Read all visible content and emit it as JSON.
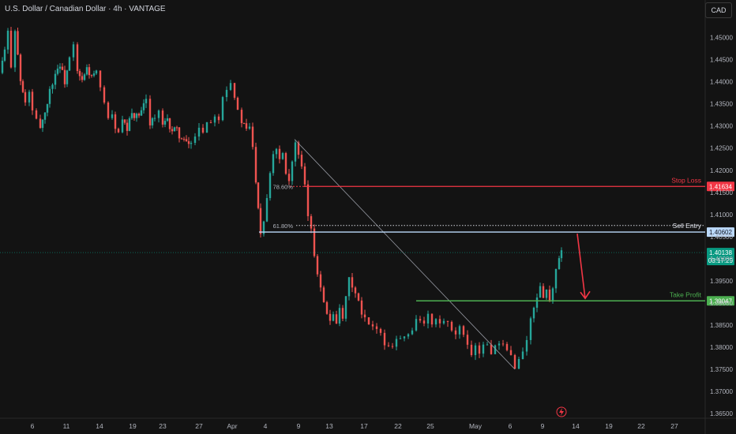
{
  "header": {
    "title": "U.S. Dollar / Canadian Dollar · 4h · VANTAGE",
    "currency": "CAD"
  },
  "colors": {
    "up": "#26a69a",
    "down": "#ef5350",
    "stop": "#f23645",
    "entry": "#bbd9fb",
    "target": "#4caf50",
    "current": "#089981",
    "background": "#131313"
  },
  "chart_data": {
    "type": "candlestick",
    "symbol": "USDCAD",
    "timeframe": "4h",
    "ylim": [
      1.365,
      1.4535
    ],
    "y_ticks": [
      "1.45000",
      "1.44500",
      "1.44000",
      "1.43500",
      "1.43000",
      "1.42500",
      "1.42000",
      "1.41500",
      "1.41000",
      "1.40500",
      "1.40000",
      "1.39500",
      "1.39000",
      "1.38500",
      "1.38000",
      "1.37500",
      "1.37000",
      "1.36500"
    ],
    "x_ticks": [
      "6",
      "11",
      "14",
      "19",
      "23",
      "27",
      "Apr",
      "4",
      "9",
      "13",
      "17",
      "22",
      "25",
      "May",
      "6",
      "9",
      "14",
      "19",
      "22",
      "27"
    ],
    "price_path": [
      [
        0,
        1.442
      ],
      [
        6,
        1.447
      ],
      [
        10,
        1.451
      ],
      [
        14,
        1.444
      ],
      [
        19,
        1.452
      ],
      [
        26,
        1.44
      ],
      [
        32,
        1.435
      ],
      [
        37,
        1.438
      ],
      [
        41,
        1.433
      ],
      [
        46,
        1.431
      ],
      [
        51,
        1.43
      ],
      [
        57,
        1.433
      ],
      [
        63,
        1.438
      ],
      [
        70,
        1.442
      ],
      [
        76,
        1.444
      ],
      [
        82,
        1.44
      ],
      [
        88,
        1.445
      ],
      [
        93,
        1.448
      ],
      [
        98,
        1.442
      ],
      [
        104,
        1.44
      ],
      [
        110,
        1.443
      ],
      [
        116,
        1.441
      ],
      [
        122,
        1.442
      ],
      [
        127,
        1.438
      ],
      [
        132,
        1.436
      ],
      [
        137,
        1.432
      ],
      [
        142,
        1.432
      ],
      [
        146,
        1.43
      ],
      [
        150,
        1.428
      ],
      [
        155,
        1.431
      ],
      [
        161,
        1.429
      ],
      [
        167,
        1.433
      ],
      [
        173,
        1.432
      ],
      [
        179,
        1.433
      ],
      [
        185,
        1.436
      ],
      [
        190,
        1.431
      ],
      [
        196,
        1.432
      ],
      [
        201,
        1.433
      ],
      [
        206,
        1.43
      ],
      [
        212,
        1.431
      ],
      [
        218,
        1.429
      ],
      [
        224,
        1.429
      ],
      [
        230,
        1.427
      ],
      [
        236,
        1.426
      ],
      [
        242,
        1.426
      ],
      [
        247,
        1.428
      ],
      [
        252,
        1.43
      ],
      [
        257,
        1.429
      ],
      [
        262,
        1.431
      ],
      [
        267,
        1.431
      ],
      [
        272,
        1.433
      ],
      [
        277,
        1.432
      ],
      [
        282,
        1.437
      ],
      [
        287,
        1.439
      ],
      [
        292,
        1.44
      ],
      [
        297,
        1.437
      ],
      [
        301,
        1.433
      ],
      [
        306,
        1.431
      ],
      [
        312,
        1.429
      ],
      [
        316,
        1.43
      ],
      [
        320,
        1.425
      ],
      [
        324,
        1.418
      ],
      [
        327,
        1.412
      ],
      [
        330,
        1.406
      ],
      [
        334,
        1.409
      ],
      [
        338,
        1.414
      ],
      [
        342,
        1.42
      ],
      [
        346,
        1.424
      ],
      [
        350,
        1.425
      ],
      [
        354,
        1.423
      ],
      [
        358,
        1.424
      ],
      [
        362,
        1.42
      ],
      [
        366,
        1.418
      ],
      [
        370,
        1.422
      ],
      [
        374,
        1.426
      ],
      [
        378,
        1.423
      ],
      [
        382,
        1.42
      ],
      [
        386,
        1.416
      ],
      [
        390,
        1.41
      ],
      [
        394,
        1.406
      ],
      [
        398,
        1.401
      ],
      [
        402,
        1.397
      ],
      [
        406,
        1.394
      ],
      [
        410,
        1.391
      ],
      [
        414,
        1.387
      ],
      [
        418,
        1.386
      ],
      [
        422,
        1.388
      ],
      [
        426,
        1.386
      ],
      [
        430,
        1.388
      ],
      [
        434,
        1.386
      ],
      [
        438,
        1.391
      ],
      [
        442,
        1.395
      ],
      [
        446,
        1.394
      ],
      [
        450,
        1.392
      ],
      [
        454,
        1.39
      ],
      [
        458,
        1.387
      ],
      [
        462,
        1.386
      ],
      [
        467,
        1.385
      ],
      [
        472,
        1.384
      ],
      [
        477,
        1.385
      ],
      [
        482,
        1.383
      ],
      [
        487,
        1.381
      ],
      [
        492,
        1.38
      ],
      [
        497,
        1.381
      ],
      [
        502,
        1.382
      ],
      [
        507,
        1.382
      ],
      [
        512,
        1.382
      ],
      [
        517,
        1.383
      ],
      [
        522,
        1.384
      ],
      [
        527,
        1.387
      ],
      [
        532,
        1.386
      ],
      [
        537,
        1.385
      ],
      [
        542,
        1.387
      ],
      [
        547,
        1.385
      ],
      [
        552,
        1.386
      ],
      [
        557,
        1.385
      ],
      [
        562,
        1.386
      ],
      [
        567,
        1.385
      ],
      [
        572,
        1.383
      ],
      [
        577,
        1.383
      ],
      [
        582,
        1.384
      ],
      [
        587,
        1.382
      ],
      [
        592,
        1.381
      ],
      [
        597,
        1.379
      ],
      [
        602,
        1.38
      ],
      [
        607,
        1.379
      ],
      [
        612,
        1.381
      ],
      [
        617,
        1.38
      ],
      [
        622,
        1.379
      ],
      [
        627,
        1.38
      ],
      [
        632,
        1.38
      ],
      [
        637,
        1.38
      ],
      [
        642,
        1.379
      ],
      [
        647,
        1.378
      ],
      [
        652,
        1.376
      ],
      [
        657,
        1.377
      ],
      [
        662,
        1.379
      ],
      [
        667,
        1.382
      ],
      [
        672,
        1.386
      ],
      [
        676,
        1.389
      ],
      [
        680,
        1.392
      ],
      [
        684,
        1.393
      ],
      [
        688,
        1.392
      ],
      [
        692,
        1.393
      ],
      [
        696,
        1.39
      ],
      [
        700,
        1.394
      ],
      [
        704,
        1.397
      ],
      [
        708,
        1.4
      ],
      [
        711,
        1.40138
      ]
    ],
    "current_price": "1.40138",
    "countdown": "03:17:29",
    "levels": [
      {
        "name": "Stop Loss",
        "price": 1.41634,
        "label": "1.41634",
        "fib": "78.60%"
      },
      {
        "name": "Sell Entry",
        "price": 1.40602,
        "label": "1.40602",
        "fib": "61.80%"
      },
      {
        "name": "Take Profit",
        "price": 1.39047,
        "label": "1.39047"
      }
    ]
  }
}
